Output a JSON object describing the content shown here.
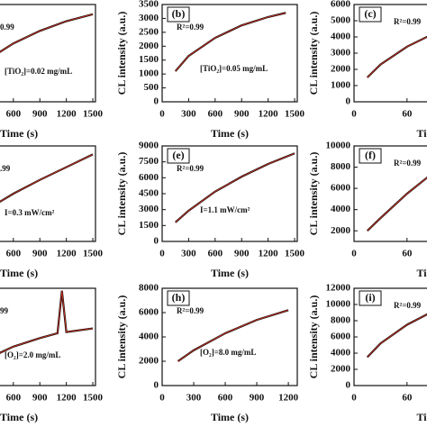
{
  "chart_data": [
    {
      "type": "line",
      "r2": "0.99",
      "condition": "[TiO₂]=0.02 mg/mL",
      "x_label": "Time (s)",
      "xlim": [
        0,
        1530
      ],
      "ylim": [
        0,
        3500
      ],
      "xticks": [
        600,
        900,
        1200,
        1500
      ],
      "yticks": [],
      "x": [
        300,
        600,
        900,
        1200,
        1500
      ],
      "series": [
        {
          "color": "#111111",
          "values": [
            1500,
            2100,
            2550,
            2900,
            3150
          ]
        }
      ],
      "fit_color": "#d03020"
    },
    {
      "type": "line",
      "panel_label": "(b)",
      "r2": "R²=0.99",
      "condition": "[TiO₂]=0.05 mg/mL",
      "x_label": "Time (s)",
      "y_label": "CL intensity (a.u.)",
      "xlim": [
        0,
        1530
      ],
      "ylim": [
        0,
        3500
      ],
      "xticks": [
        0,
        300,
        600,
        900,
        1200,
        1500
      ],
      "yticks": [
        0,
        500,
        1000,
        1500,
        2000,
        2500,
        3000,
        3500
      ],
      "x": [
        150,
        300,
        600,
        900,
        1200,
        1400
      ],
      "series": [
        {
          "color": "#111111",
          "values": [
            1100,
            1650,
            2300,
            2750,
            3050,
            3200
          ]
        }
      ],
      "fit_color": "#d03020"
    },
    {
      "type": "line",
      "panel_label": "(c)",
      "r2": "R²=0.99",
      "x_label": "Ti",
      "y_label": "CL intensity (a.u.)",
      "xlim": [
        0,
        1530
      ],
      "ylim": [
        0,
        6000
      ],
      "xticks": [
        0,
        {
          "value": 600,
          "label": "60"
        }
      ],
      "yticks": [
        0,
        1000,
        2000,
        3000,
        4000,
        5000,
        6000
      ],
      "x": [
        150,
        300,
        600,
        900
      ],
      "series": [
        {
          "color": "#111111",
          "values": [
            1500,
            2300,
            3400,
            4200
          ]
        }
      ],
      "fit_color": "#d03020"
    },
    {
      "type": "line",
      "r2": ".99",
      "condition": "I=0.3 mW/cm²",
      "x_label": "Time (s)",
      "xlim": [
        0,
        1530
      ],
      "ylim": [
        0,
        9000
      ],
      "xticks": [
        600,
        900,
        1200,
        1500
      ],
      "yticks": [],
      "x": [
        300,
        600,
        900,
        1200,
        1500
      ],
      "series": [
        {
          "color": "#111111",
          "values": [
            3000,
            4500,
            5800,
            7000,
            8200
          ]
        }
      ],
      "fit_color": "#d03020"
    },
    {
      "type": "line",
      "panel_label": "(e)",
      "r2": "R²=0.99",
      "condition": "I=1.1 mW/cm²",
      "x_label": "Time (s)",
      "y_label": "CL intensity (a.u.)",
      "xlim": [
        0,
        1530
      ],
      "ylim": [
        0,
        9000
      ],
      "xticks": [
        0,
        300,
        600,
        900,
        1200,
        1500
      ],
      "yticks": [
        0,
        1500,
        3000,
        4500,
        6000,
        7500,
        9000
      ],
      "x": [
        150,
        300,
        600,
        900,
        1200,
        1500
      ],
      "series": [
        {
          "color": "#111111",
          "values": [
            1800,
            2900,
            4700,
            6100,
            7300,
            8300
          ]
        }
      ],
      "fit_color": "#d03020"
    },
    {
      "type": "line",
      "panel_label": "(f)",
      "r2": "R²=0.99",
      "x_label": "Ti",
      "y_label": "CL intensity (a.u.)",
      "xlim": [
        0,
        1530
      ],
      "ylim": [
        1000,
        10000
      ],
      "xticks": [
        0,
        {
          "value": 600,
          "label": "60"
        }
      ],
      "yticks": [
        2000,
        4000,
        6000,
        8000,
        10000
      ],
      "x": [
        150,
        300,
        600,
        900
      ],
      "series": [
        {
          "color": "#111111",
          "values": [
            2000,
            3200,
            5500,
            7500
          ]
        }
      ],
      "fit_color": "#d03020"
    },
    {
      "type": "line",
      "r2": "99",
      "condition": "[O₂]=2.0 mg/mL",
      "x_label": "Time (s)",
      "xlim": [
        0,
        1530
      ],
      "ylim": [
        0,
        8000
      ],
      "xticks": [
        600,
        900,
        1200,
        1500
      ],
      "yticks": [],
      "x": [
        300,
        600,
        900,
        1100,
        1150,
        1200,
        1500
      ],
      "series": [
        {
          "color": "#111111",
          "values": [
            2200,
            3200,
            3900,
            4300,
            7800,
            4400,
            4700
          ]
        }
      ],
      "fit_color": "#d03020"
    },
    {
      "type": "line",
      "panel_label": "(h)",
      "r2": "R²=0.99",
      "condition": "[O₂]=8.0 mg/mL",
      "x_label": "Time (s)",
      "y_label": "CL intensity (a.u.)",
      "xlim": [
        0,
        1285
      ],
      "ylim": [
        0,
        8000
      ],
      "xticks": [
        0,
        300,
        600,
        900,
        1200
      ],
      "yticks": [
        0,
        2000,
        4000,
        6000,
        8000
      ],
      "x": [
        150,
        300,
        600,
        900,
        1200
      ],
      "series": [
        {
          "color": "#111111",
          "values": [
            2000,
            2900,
            4300,
            5400,
            6200
          ]
        }
      ],
      "fit_color": "#d03020"
    },
    {
      "type": "line",
      "panel_label": "(i)",
      "r2": "R²=0.99",
      "x_label": "Ti",
      "y_label": "CL intensity (a.u.)",
      "xlim": [
        0,
        1530
      ],
      "ylim": [
        0,
        12000
      ],
      "xticks": [
        0,
        {
          "value": 600,
          "label": "60"
        }
      ],
      "yticks": [
        0,
        2000,
        4000,
        6000,
        8000,
        10000,
        12000
      ],
      "x": [
        150,
        300,
        600,
        900
      ],
      "series": [
        {
          "color": "#111111",
          "values": [
            3500,
            5200,
            7500,
            9200
          ]
        }
      ],
      "fit_color": "#d03020"
    }
  ]
}
